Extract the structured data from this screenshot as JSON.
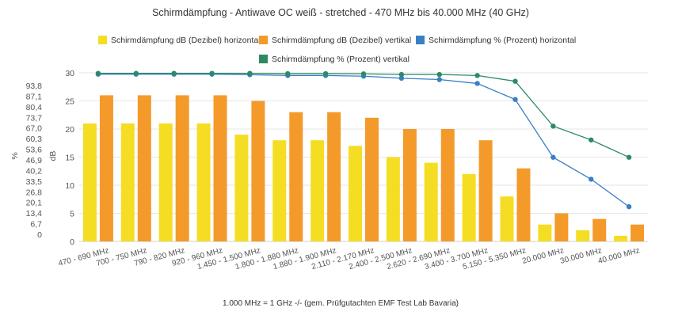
{
  "chart_data": {
    "type": "bar",
    "title": "Schirmdämpfung - Antiwave OC weiß - stretched - 470 MHz bis 40.000 MHz (40 GHz)",
    "footnote": "1.000 MHz = 1 GHz -/- (gem. Prüfgutachten EMF Test Lab Bavaria)",
    "categories": [
      "470 - 690 MHz",
      "700 - 750 MHz",
      "790 - 820 MHz",
      "920 - 960 MHz",
      "1.450 - 1.500 MHz",
      "1.800 - 1.880 MHz",
      "1.880 - 1.900 MHz",
      "2.110 - 2.170 MHz",
      "2.400 - 2.500 MHz",
      "2.620 - 2.690 MHz",
      "3.400 - 3.700 MHz",
      "5.150 - 5.350 MHz",
      "20.000 MHz",
      "30.000 MHz",
      "40.000 MHz"
    ],
    "y_left_title": "dB",
    "y_left_ticks": [
      0,
      5,
      10,
      15,
      20,
      25,
      30
    ],
    "ylim_left": [
      0,
      30
    ],
    "y_right_title": "%",
    "y_right_ticks": [
      "0",
      "6,7",
      "13,4",
      "20,1",
      "26,8",
      "33,5",
      "40,2",
      "46,9",
      "53,6",
      "60,3",
      "67,0",
      "73,7",
      "80,4",
      "87,1",
      "93,8"
    ],
    "ylim_right": [
      0,
      100
    ],
    "grid": true,
    "legend_position": "top",
    "series": [
      {
        "name": "Schirmdämpfung dB (Dezibel) horizontal",
        "kind": "bar",
        "axis": "left",
        "color": "#f5dd24",
        "values": [
          21,
          21,
          21,
          21,
          19,
          18,
          18,
          17,
          15,
          14,
          12,
          8,
          3,
          2,
          1
        ]
      },
      {
        "name": "Schirmdämpfung dB (Dezibel) vertikal",
        "kind": "bar",
        "axis": "left",
        "color": "#f39a2b",
        "values": [
          26,
          26,
          26,
          26,
          25,
          23,
          23,
          22,
          20,
          20,
          18,
          13,
          5,
          4,
          3
        ]
      },
      {
        "name": "Schirmdämpfung % (Prozent) horizontal",
        "kind": "line",
        "axis": "right",
        "color": "#3a7fc4",
        "values": [
          99.2,
          99.2,
          99.2,
          99.2,
          98.9,
          98.4,
          98.4,
          98.0,
          96.8,
          96.0,
          93.7,
          84.2,
          49.9,
          36.9,
          20.6
        ]
      },
      {
        "name": "Schirmdämpfung % (Prozent) vertikal",
        "kind": "line",
        "axis": "right",
        "color": "#2e8a64",
        "values": [
          99.7,
          99.7,
          99.7,
          99.7,
          99.7,
          99.5,
          99.5,
          99.4,
          99.0,
          99.0,
          98.4,
          95.0,
          68.4,
          60.2,
          49.9
        ]
      }
    ]
  }
}
